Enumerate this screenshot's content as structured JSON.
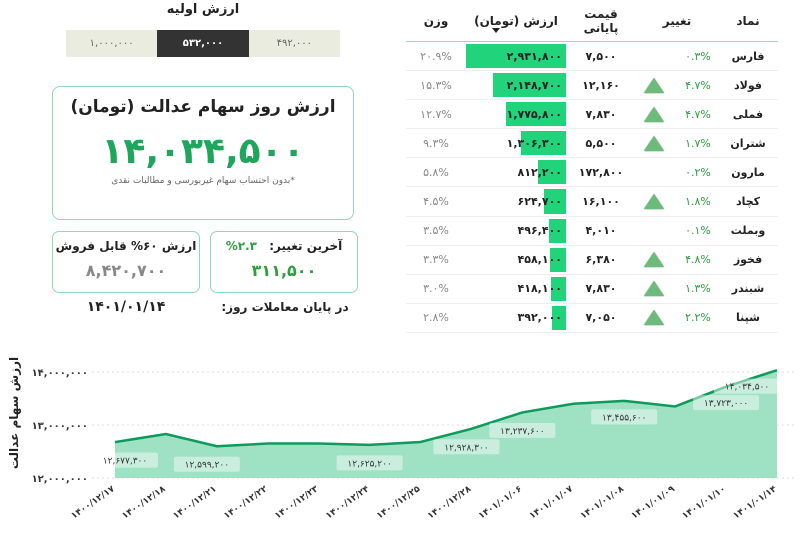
{
  "initial_value": {
    "title": "ارزش اولیه",
    "options": [
      {
        "label": "۱,۰۰۰,۰۰۰",
        "active": false
      },
      {
        "label": "۵۳۲,۰۰۰",
        "active": true
      },
      {
        "label": "۴۹۲,۰۰۰",
        "active": false
      }
    ]
  },
  "main_card": {
    "title": "ارزش روز سهام عدالت (تومان)",
    "value": "۱۴,۰۳۴,۵۰۰",
    "note": "*بدون احتساب سهام غیربورسی و مطالبات نقدی"
  },
  "change_card": {
    "label": "آخرین تغییر:",
    "percent": "۲.۳%",
    "amount": "۳۱۱,۵۰۰"
  },
  "sellable_card": {
    "label": "ارزش ۶۰% قابل فروش",
    "amount": "۸,۴۲۰,۷۰۰"
  },
  "date": {
    "label": "در پایان معاملات روز:",
    "value": "۱۴۰۱/۰۱/۱۴"
  },
  "table": {
    "headers": {
      "symbol": "نماد",
      "change": "تغییر",
      "price": "قیمت پایانی",
      "value": "ارزش (تومان)",
      "weight": "وزن"
    },
    "sorted_by": "value",
    "rows": [
      {
        "symbol": "فارس",
        "change": "۰.۳%",
        "arrow": false,
        "price": "۷,۵۰۰",
        "value": "۲,۹۳۱,۸۰۰",
        "weight": "۲۰.۹%",
        "bar_pct": 100
      },
      {
        "symbol": "فولاد",
        "change": "۴.۷%",
        "arrow": true,
        "price": "۱۲,۱۶۰",
        "value": "۲,۱۴۸,۷۰۰",
        "weight": "۱۵.۳%",
        "bar_pct": 73
      },
      {
        "symbol": "فملی",
        "change": "۴.۷%",
        "arrow": true,
        "price": "۷,۸۳۰",
        "value": "۱,۷۷۵,۸۰۰",
        "weight": "۱۲.۷%",
        "bar_pct": 60
      },
      {
        "symbol": "شتران",
        "change": "۱.۷%",
        "arrow": true,
        "price": "۵,۵۰۰",
        "value": "۱,۳۰۶,۳۰۰",
        "weight": "۹.۳%",
        "bar_pct": 45
      },
      {
        "symbol": "مارون",
        "change": "۰.۲%",
        "arrow": false,
        "price": "۱۷۲,۸۰۰",
        "value": "۸۱۲,۲۰۰",
        "weight": "۵.۸%",
        "bar_pct": 28
      },
      {
        "symbol": "کچاد",
        "change": "۱.۸%",
        "arrow": true,
        "price": "۱۶,۱۰۰",
        "value": "۶۲۴,۷۰۰",
        "weight": "۴.۵%",
        "bar_pct": 22
      },
      {
        "symbol": "وبملت",
        "change": "۰.۱%",
        "arrow": false,
        "price": "۴,۰۱۰",
        "value": "۴۹۶,۴۰۰",
        "weight": "۳.۵%",
        "bar_pct": 17
      },
      {
        "symbol": "فخوز",
        "change": "۴.۸%",
        "arrow": true,
        "price": "۶,۳۸۰",
        "value": "۴۵۸,۱۰۰",
        "weight": "۳.۳%",
        "bar_pct": 16
      },
      {
        "symbol": "شبندر",
        "change": "۱.۳%",
        "arrow": true,
        "price": "۷,۸۳۰",
        "value": "۴۱۸,۱۰۰",
        "weight": "۳.۰%",
        "bar_pct": 15
      },
      {
        "symbol": "شپنا",
        "change": "۲.۲%",
        "arrow": true,
        "price": "۷,۰۵۰",
        "value": "۳۹۲,۰۰۰",
        "weight": "۲.۸%",
        "bar_pct": 14
      }
    ]
  },
  "colors": {
    "accent_green": "#1ea65c",
    "bar_green": "#21d37b",
    "line_green": "#0e9a5a",
    "area_fill": "#9adfc0",
    "card_border": "#8fd9b6",
    "segment_bg": "#e9ecdf",
    "segment_active": "#333333"
  },
  "chart_data": {
    "type": "area",
    "title": "",
    "xlabel": "",
    "ylabel": "ارزش سهام عدالت",
    "ylim": [
      12000000,
      14000000
    ],
    "yticks": [
      "۱۲,۰۰۰,۰۰۰",
      "۱۳,۰۰۰,۰۰۰",
      "۱۴,۰۰۰,۰۰۰"
    ],
    "grid": true,
    "categories": [
      "۱۴۰۰/۱۲/۱۷",
      "۱۴۰۰/۱۲/۱۸",
      "۱۴۰۰/۱۲/۲۱",
      "۱۴۰۰/۱۲/۲۲",
      "۱۴۰۰/۱۲/۲۳",
      "۱۴۰۰/۱۲/۲۴",
      "۱۴۰۰/۱۲/۲۵",
      "۱۴۰۰/۱۲/۲۸",
      "۱۴۰۱/۰۱/۰۶",
      "۱۴۰۱/۰۱/۰۷",
      "۱۴۰۱/۰۱/۰۸",
      "۱۴۰۱/۰۱/۰۹",
      "۱۴۰۱/۰۱/۱۰",
      "۱۴۰۱/۰۱/۱۴"
    ],
    "values": [
      12677300,
      12830000,
      12599200,
      12650000,
      12650000,
      12625200,
      12680000,
      12928300,
      13237600,
      13400000,
      13455600,
      13350000,
      13723000,
      14034500
    ],
    "annotations": [
      {
        "index": 0,
        "label": "۱۲,۶۷۷,۳۰۰"
      },
      {
        "index": 2,
        "label": "۱۲,۵۹۹,۲۰۰"
      },
      {
        "index": 5,
        "label": "۱۲,۶۲۵,۲۰۰"
      },
      {
        "index": 7,
        "label": "۱۲,۹۲۸,۳۰۰"
      },
      {
        "index": 8,
        "label": "۱۳,۲۳۷,۶۰۰"
      },
      {
        "index": 10,
        "label": "۱۳,۴۵۵,۶۰۰"
      },
      {
        "index": 12,
        "label": "۱۳,۷۲۳,۰۰۰"
      },
      {
        "index": 13,
        "label": "۱۴,۰۳۴,۵۰۰"
      }
    ]
  }
}
